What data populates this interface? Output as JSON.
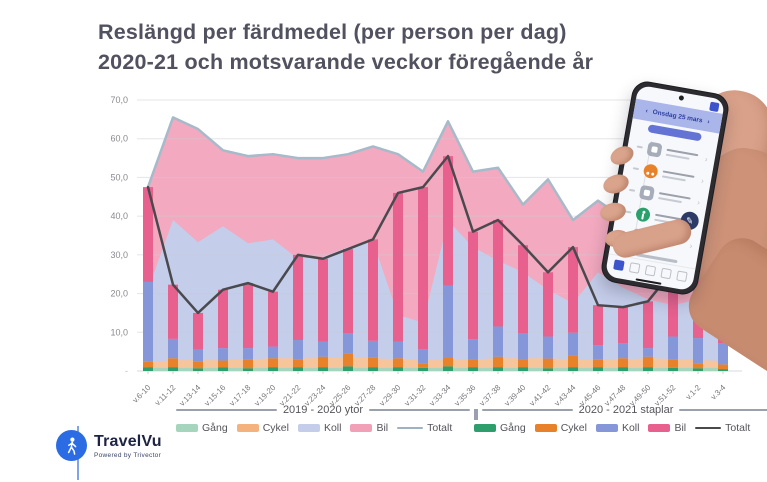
{
  "title": {
    "line1": "Reslängd per färdmedel (per person per dag)",
    "line2": "2020-21 och motsvarande veckor föregående år"
  },
  "chart_data": {
    "type": "combo-stacked-area-and-stacked-bar-with-total-lines",
    "categories": [
      "v.6-10",
      "v.11-12",
      "v.13-14",
      "v.15-16",
      "v.17-18",
      "v.19-20",
      "v.21-22",
      "v.23-24",
      "v.25-26",
      "v.27-28",
      "v.29-30",
      "v.31-32",
      "v.33-34",
      "v.35-36",
      "v.37-38",
      "v.39-40",
      "v.41-42",
      "v.43-44",
      "v.45-46",
      "v.47-48",
      "v.49-50",
      "v.51-52",
      "v.1-2",
      "v.3-4"
    ],
    "y_axis": {
      "min": 0,
      "max": 70,
      "step": 10,
      "tick_labels": [
        "70,0",
        "60,0",
        "50,0",
        "40,0",
        "30,0",
        "20,0",
        "10,0"
      ],
      "zero_label": "-"
    },
    "grid": true,
    "series_groups": [
      {
        "name": "2019 - 2020 ytor",
        "render": "stacked-area",
        "line_name": "Totalt",
        "line_color": "#a7bac9",
        "series": [
          {
            "name": "Gång",
            "color": "#a5d6bd",
            "values": [
              0.8,
              0.8,
              0.8,
              0.8,
              0.8,
              0.8,
              0.8,
              0.8,
              0.8,
              0.8,
              0.8,
              0.8,
              0.8,
              0.8,
              0.8,
              0.8,
              0.8,
              0.8,
              0.8,
              0.8,
              0.8,
              0.8,
              0.8,
              0.8
            ]
          },
          {
            "name": "Cykel",
            "color": "#f6c59c",
            "values": [
              1.5,
              2.0,
              2.0,
              2.0,
              2.2,
              2.5,
              2.5,
              2.5,
              2.7,
              2.5,
              2.2,
              2.0,
              2.0,
              2.2,
              2.5,
              2.5,
              2.5,
              2.2,
              2.0,
              2.2,
              2.5,
              2.3,
              2.0,
              1.8
            ]
          },
          {
            "name": "Koll",
            "color": "#c4cdea",
            "values": [
              18.7,
              36.2,
              30.5,
              34.6,
              30.0,
              30.7,
              25.7,
              26.2,
              28.5,
              30.2,
              11.5,
              9.7,
              36.1,
              29.0,
              25.2,
              22.2,
              17.7,
              14.5,
              22.7,
              18.5,
              15.2,
              13.9,
              15.7,
              14.9
            ]
          },
          {
            "name": "Bil",
            "color": "#f3a9bf",
            "values": [
              26.5,
              26.5,
              29.2,
              19.6,
              22.5,
              22.0,
              26.0,
              25.5,
              24.0,
              24.5,
              41.5,
              39.0,
              25.6,
              19.5,
              24.0,
              17.5,
              28.5,
              21.5,
              18.5,
              18.0,
              18.5,
              17.0,
              16.0,
              15.0
            ]
          }
        ],
        "totalt": [
          47.5,
          65.5,
          62.5,
          57.0,
          55.5,
          56.0,
          55.0,
          55.0,
          56.0,
          58.0,
          56.0,
          51.5,
          64.5,
          51.5,
          52.5,
          43.0,
          49.5,
          39.0,
          44.0,
          39.5,
          37.0,
          34.0,
          34.5,
          32.5
        ]
      },
      {
        "name": "2020 - 2021 staplar",
        "render": "stacked-bar",
        "line_name": "Totalt",
        "line_color": "#4a4a4e",
        "series": [
          {
            "name": "Gång",
            "color": "#2f9e6d",
            "values": [
              1.0,
              1.0,
              0.7,
              0.9,
              0.7,
              1.0,
              1.0,
              1.0,
              1.2,
              1.0,
              1.0,
              0.8,
              1.2,
              1.0,
              1.0,
              1.0,
              0.7,
              1.0,
              1.0,
              1.0,
              1.0,
              0.8,
              0.7,
              0.5
            ]
          },
          {
            "name": "Cykel",
            "color": "#e8822a",
            "values": [
              1.5,
              2.3,
              1.8,
              1.8,
              2.2,
              2.3,
              1.9,
              2.7,
              3.4,
              2.4,
              2.3,
              1.2,
              2.3,
              2.0,
              2.7,
              2.0,
              2.5,
              2.9,
              1.9,
              2.3,
              2.7,
              2.1,
              1.3,
              1.2
            ]
          },
          {
            "name": "Koll",
            "color": "#8597d8",
            "values": [
              20.5,
              5.0,
              3.0,
              3.2,
              3.0,
              3.0,
              5.1,
              3.9,
              5.2,
              4.4,
              4.3,
              3.6,
              18.5,
              5.2,
              7.8,
              6.8,
              5.7,
              6.0,
              3.8,
              3.9,
              2.2,
              6.0,
              6.5,
              5.5
            ]
          },
          {
            "name": "Bil",
            "color": "#e7608e",
            "values": [
              24.5,
              14.0,
              9.5,
              15.1,
              16.8,
              14.2,
              22.0,
              21.4,
              21.7,
              26.2,
              38.4,
              41.9,
              33.5,
              27.8,
              27.5,
              22.7,
              16.6,
              22.1,
              10.3,
              9.3,
              12.1,
              17.1,
              18.5,
              7.3
            ]
          }
        ],
        "totalt": [
          47.5,
          22.3,
          15.0,
          21.0,
          22.7,
          20.5,
          30.0,
          29.0,
          31.5,
          34.0,
          46.0,
          47.5,
          55.5,
          36.0,
          39.0,
          32.5,
          25.5,
          32.0,
          17.0,
          16.5,
          18.0,
          26.0,
          27.0,
          14.5
        ]
      }
    ]
  },
  "legends": [
    {
      "group_label": "2019 - 2020 ytor",
      "entries": [
        {
          "label": "Gång",
          "color": "#a5d6bd",
          "type": "swatch"
        },
        {
          "label": "Cykel",
          "color": "#f3b27e",
          "type": "swatch"
        },
        {
          "label": "Koll",
          "color": "#c4cdea",
          "type": "swatch"
        },
        {
          "label": "Bil",
          "color": "#f2a0b8",
          "type": "swatch"
        },
        {
          "label": "Totalt",
          "color": "#9fb2c1",
          "type": "line"
        }
      ]
    },
    {
      "group_label": "2020 - 2021 staplar",
      "entries": [
        {
          "label": "Gång",
          "color": "#2f9e6d",
          "type": "swatch"
        },
        {
          "label": "Cykel",
          "color": "#e8822a",
          "type": "swatch"
        },
        {
          "label": "Koll",
          "color": "#8597d8",
          "type": "swatch"
        },
        {
          "label": "Bil",
          "color": "#e7608e",
          "type": "swatch"
        },
        {
          "label": "Totalt",
          "color": "#4a4a4e",
          "type": "line"
        }
      ]
    }
  ],
  "logo": {
    "name": "TravelVu",
    "tagline": "Powered by Trivector"
  },
  "phone": {
    "chevron_left": "‹",
    "chevron_right": "›",
    "header_date": "Onsdag 25 mars",
    "fab_glyph": "✎"
  },
  "colors": {
    "grid": "#e9e9ec",
    "grid_over_area": "#caccd4",
    "axis_text": "#8a8a90",
    "title_text": "#51515f",
    "legend_rule": "#9aa0ae",
    "baseline": "#d9d9de",
    "logo_blue": "#2b6be4",
    "skin": "#cd9278",
    "phone_header": "#aab6ea",
    "phone_accent": "#3d55cc",
    "fab": "#2c3a68",
    "warn_yellow": "#f2b63c"
  }
}
